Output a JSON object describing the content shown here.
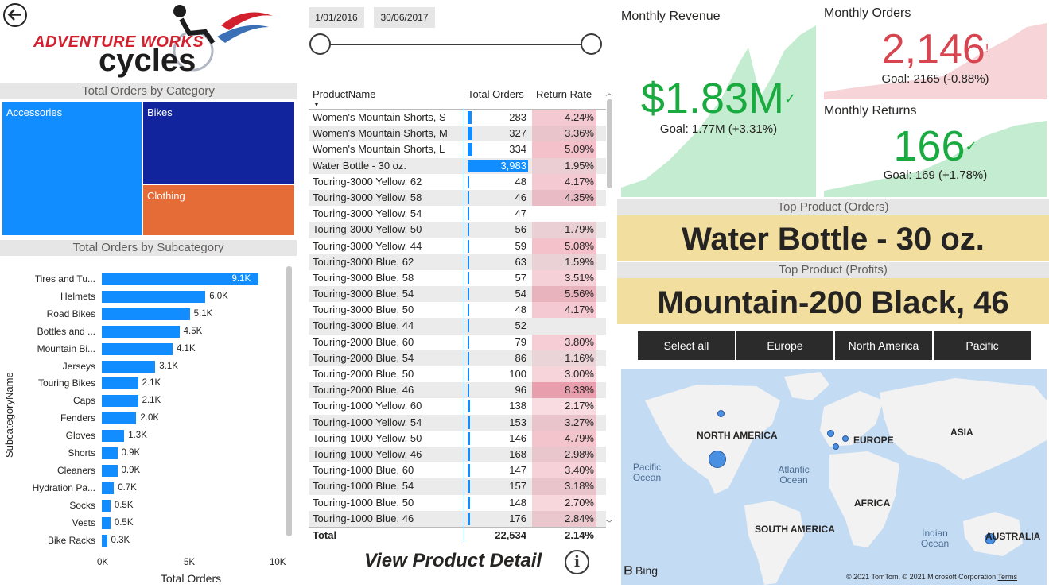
{
  "logo": {
    "line1": "ADVENTURE WORKS",
    "line2": "cycles"
  },
  "category_chart": {
    "title": "Total Orders by Category",
    "cells": [
      {
        "label": "Accessories",
        "color": "#118dff"
      },
      {
        "label": "Bikes",
        "color": "#12239e"
      },
      {
        "label": "Clothing",
        "color": "#e66c37"
      }
    ]
  },
  "subcategory_chart": {
    "title": "Total Orders by Subcategory",
    "ylabel": "SubcategoryName",
    "xlabel": "Total Orders",
    "ticks": [
      "0K",
      "5K",
      "10K"
    ]
  },
  "chart_data": {
    "type": "bar",
    "categories": [
      "Tires and Tu...",
      "Helmets",
      "Road Bikes",
      "Bottles and ...",
      "Mountain Bi...",
      "Jerseys",
      "Touring Bikes",
      "Caps",
      "Fenders",
      "Gloves",
      "Shorts",
      "Cleaners",
      "Hydration Pa...",
      "Socks",
      "Vests",
      "Bike Racks"
    ],
    "values": [
      9100,
      6000,
      5100,
      4500,
      4100,
      3100,
      2100,
      2100,
      2000,
      1300,
      900,
      900,
      700,
      500,
      500,
      300
    ],
    "labels": [
      "9.1K",
      "6.0K",
      "5.1K",
      "4.5K",
      "4.1K",
      "3.1K",
      "2.1K",
      "2.1K",
      "2.0K",
      "1.3K",
      "0.9K",
      "0.9K",
      "0.7K",
      "0.5K",
      "0.5K",
      "0.3K"
    ],
    "xlim": [
      0,
      10000
    ]
  },
  "date_slicer": {
    "start": "1/01/2016",
    "end": "30/06/2017"
  },
  "product_table": {
    "headers": {
      "name": "ProductName",
      "orders": "Total Orders",
      "rate": "Return Rate"
    },
    "rows": [
      {
        "name": "Women's Mountain Shorts, S",
        "orders": 283,
        "orders_label": "283",
        "rate": "4.24%",
        "rate_num": 4.24
      },
      {
        "name": "Women's Mountain Shorts, M",
        "orders": 327,
        "orders_label": "327",
        "rate": "3.36%",
        "rate_num": 3.36
      },
      {
        "name": "Women's Mountain Shorts, L",
        "orders": 334,
        "orders_label": "334",
        "rate": "5.09%",
        "rate_num": 5.09
      },
      {
        "name": "Water Bottle - 30 oz.",
        "orders": 3983,
        "orders_label": "3,983",
        "rate": "1.95%",
        "rate_num": 1.95
      },
      {
        "name": "Touring-3000 Yellow, 62",
        "orders": 48,
        "orders_label": "48",
        "rate": "4.17%",
        "rate_num": 4.17
      },
      {
        "name": "Touring-3000 Yellow, 58",
        "orders": 46,
        "orders_label": "46",
        "rate": "4.35%",
        "rate_num": 4.35
      },
      {
        "name": "Touring-3000 Yellow, 54",
        "orders": 47,
        "orders_label": "47",
        "rate": "",
        "rate_num": 0
      },
      {
        "name": "Touring-3000 Yellow, 50",
        "orders": 56,
        "orders_label": "56",
        "rate": "1.79%",
        "rate_num": 1.79
      },
      {
        "name": "Touring-3000 Yellow, 44",
        "orders": 59,
        "orders_label": "59",
        "rate": "5.08%",
        "rate_num": 5.08
      },
      {
        "name": "Touring-3000 Blue, 62",
        "orders": 63,
        "orders_label": "63",
        "rate": "1.59%",
        "rate_num": 1.59
      },
      {
        "name": "Touring-3000 Blue, 58",
        "orders": 57,
        "orders_label": "57",
        "rate": "3.51%",
        "rate_num": 3.51
      },
      {
        "name": "Touring-3000 Blue, 54",
        "orders": 54,
        "orders_label": "54",
        "rate": "5.56%",
        "rate_num": 5.56
      },
      {
        "name": "Touring-3000 Blue, 50",
        "orders": 48,
        "orders_label": "48",
        "rate": "4.17%",
        "rate_num": 4.17
      },
      {
        "name": "Touring-3000 Blue, 44",
        "orders": 52,
        "orders_label": "52",
        "rate": "",
        "rate_num": 0
      },
      {
        "name": "Touring-2000 Blue, 60",
        "orders": 79,
        "orders_label": "79",
        "rate": "3.80%",
        "rate_num": 3.8
      },
      {
        "name": "Touring-2000 Blue, 54",
        "orders": 86,
        "orders_label": "86",
        "rate": "1.16%",
        "rate_num": 1.16
      },
      {
        "name": "Touring-2000 Blue, 50",
        "orders": 100,
        "orders_label": "100",
        "rate": "3.00%",
        "rate_num": 3.0
      },
      {
        "name": "Touring-2000 Blue, 46",
        "orders": 96,
        "orders_label": "96",
        "rate": "8.33%",
        "rate_num": 8.33
      },
      {
        "name": "Touring-1000 Yellow, 60",
        "orders": 138,
        "orders_label": "138",
        "rate": "2.17%",
        "rate_num": 2.17
      },
      {
        "name": "Touring-1000 Yellow, 54",
        "orders": 153,
        "orders_label": "153",
        "rate": "3.27%",
        "rate_num": 3.27
      },
      {
        "name": "Touring-1000 Yellow, 50",
        "orders": 146,
        "orders_label": "146",
        "rate": "4.79%",
        "rate_num": 4.79
      },
      {
        "name": "Touring-1000 Yellow, 46",
        "orders": 168,
        "orders_label": "168",
        "rate": "2.98%",
        "rate_num": 2.98
      },
      {
        "name": "Touring-1000 Blue, 60",
        "orders": 147,
        "orders_label": "147",
        "rate": "3.40%",
        "rate_num": 3.4
      },
      {
        "name": "Touring-1000 Blue, 54",
        "orders": 157,
        "orders_label": "157",
        "rate": "3.18%",
        "rate_num": 3.18
      },
      {
        "name": "Touring-1000 Blue, 50",
        "orders": 148,
        "orders_label": "148",
        "rate": "2.70%",
        "rate_num": 2.7
      },
      {
        "name": "Touring-1000 Blue, 46",
        "orders": 176,
        "orders_label": "176",
        "rate": "2.84%",
        "rate_num": 2.84
      }
    ],
    "total": {
      "label": "Total",
      "orders": "22,534",
      "rate": "2.14%"
    }
  },
  "view_detail": {
    "label": "View Product Detail"
  },
  "kpi": {
    "revenue": {
      "title": "Monthly Revenue",
      "value": "$1.83M",
      "goal": "Goal: 1.77M (+3.31%)",
      "color": "#1aab40"
    },
    "orders": {
      "title": "Monthly Orders",
      "value": "2,146",
      "goal": "Goal: 2165 (-0.88%)",
      "color": "#d64550"
    },
    "returns": {
      "title": "Monthly Returns",
      "value": "166",
      "goal": "Goal: 169 (+1.78%)",
      "color": "#1aab40"
    }
  },
  "top_product": {
    "orders_title": "Top Product (Orders)",
    "orders_value": "Water Bottle - 30 oz.",
    "profits_title": "Top Product (Profits)",
    "profits_value": "Mountain-200 Black, 46"
  },
  "regions": [
    "Select all",
    "Europe",
    "North America",
    "Pacific"
  ],
  "map": {
    "labels": [
      "NORTH AMERICA",
      "EUROPE",
      "ASIA",
      "AFRICA",
      "SOUTH AMERICA",
      "AUSTRALIA"
    ],
    "oceans": [
      "Pacific Ocean",
      "Atlantic Ocean",
      "Indian Ocean"
    ],
    "brand": "Bing",
    "copyright": "© 2021 TomTom, © 2021 Microsoft Corporation",
    "terms": "Terms"
  }
}
